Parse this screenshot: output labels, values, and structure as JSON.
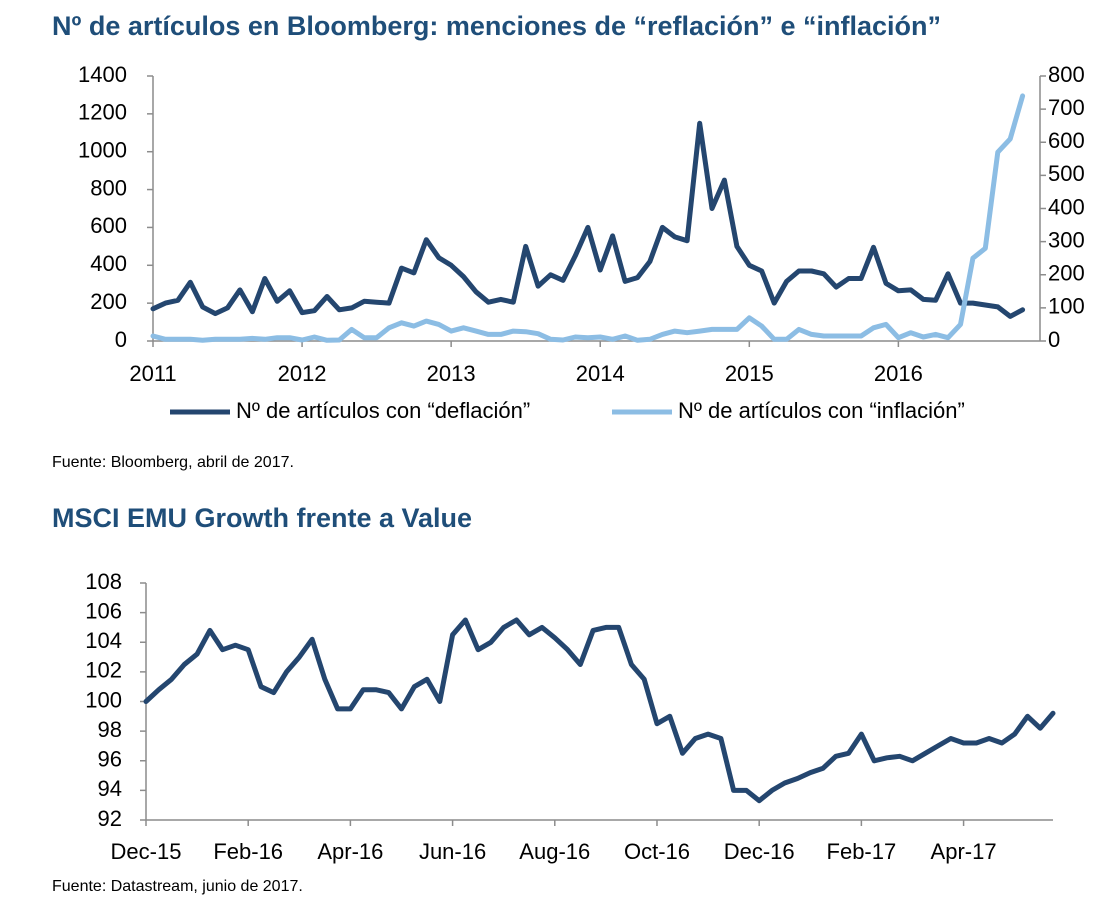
{
  "chart_data": [
    {
      "type": "line",
      "title": "Nº de artículos en Bloomberg: menciones de “reflación” e “inflación”",
      "x": [
        2011,
        2011.083,
        2011.167,
        2011.25,
        2011.333,
        2011.417,
        2011.5,
        2011.583,
        2011.667,
        2011.75,
        2011.833,
        2011.917,
        2012,
        2012.083,
        2012.167,
        2012.25,
        2012.333,
        2012.417,
        2012.5,
        2012.583,
        2012.667,
        2012.75,
        2012.833,
        2012.917,
        2013,
        2013.083,
        2013.167,
        2013.25,
        2013.333,
        2013.417,
        2013.5,
        2013.583,
        2013.667,
        2013.75,
        2013.833,
        2013.917,
        2014,
        2014.083,
        2014.167,
        2014.25,
        2014.333,
        2014.417,
        2014.5,
        2014.583,
        2014.667,
        2014.75,
        2014.833,
        2014.917,
        2015,
        2015.083,
        2015.167,
        2015.25,
        2015.333,
        2015.417,
        2015.5,
        2015.583,
        2015.667,
        2015.75,
        2015.833,
        2015.917,
        2016,
        2016.083,
        2016.167,
        2016.25,
        2016.333,
        2016.417,
        2016.5,
        2016.583,
        2016.667,
        2016.75,
        2016.833
      ],
      "xlim": [
        2011,
        2016.95
      ],
      "xticks": [
        2011,
        2012,
        2013,
        2014,
        2015,
        2016
      ],
      "ylim": [
        0,
        1400
      ],
      "yticks": [
        0,
        200,
        400,
        600,
        800,
        1000,
        1200,
        1400
      ],
      "y2lim": [
        0,
        800
      ],
      "y2ticks": [
        0,
        100,
        200,
        300,
        400,
        500,
        600,
        700,
        800
      ],
      "legend": "bottom",
      "series": [
        {
          "name": "Nº de artículos con “deflación”",
          "color": "#24466f",
          "values": [
            170,
            200,
            215,
            310,
            180,
            145,
            175,
            270,
            155,
            330,
            210,
            265,
            150,
            160,
            235,
            165,
            175,
            210,
            205,
            200,
            385,
            360,
            535,
            440,
            400,
            340,
            260,
            205,
            220,
            205,
            500,
            290,
            350,
            320,
            450,
            600,
            375,
            555,
            315,
            335,
            420,
            600,
            550,
            530,
            1150,
            700,
            850,
            500,
            400,
            370,
            200,
            315,
            370,
            370,
            355,
            285,
            330,
            330,
            495,
            305,
            265,
            270,
            220,
            215,
            355,
            200,
            200,
            190,
            180,
            130,
            165
          ]
        },
        {
          "name": "Nº de artículos con “inflación”",
          "color": "#8cbde4",
          "axis": "y2",
          "values": [
            15,
            5,
            5,
            5,
            2,
            5,
            5,
            5,
            8,
            5,
            10,
            10,
            3,
            12,
            2,
            3,
            35,
            10,
            10,
            40,
            55,
            45,
            60,
            50,
            30,
            40,
            30,
            20,
            20,
            30,
            28,
            22,
            5,
            3,
            12,
            10,
            12,
            5,
            15,
            2,
            5,
            20,
            30,
            25,
            30,
            35,
            35,
            35,
            70,
            45,
            5,
            5,
            35,
            20,
            15,
            15,
            15,
            15,
            40,
            50,
            10,
            25,
            12,
            20,
            10,
            50,
            250,
            280,
            570,
            610,
            740
          ]
        }
      ],
      "source": "Fuente: Bloomberg, abril de 2017."
    },
    {
      "type": "line",
      "title": "MSCI EMU Growth frente a Value",
      "categories": [
        "Dec-15",
        null,
        null,
        null,
        null,
        null,
        null,
        null,
        "Feb-16",
        null,
        null,
        null,
        null,
        null,
        null,
        null,
        "Apr-16",
        null,
        null,
        null,
        null,
        null,
        null,
        null,
        "Jun-16",
        null,
        null,
        null,
        null,
        null,
        null,
        null,
        "Aug-16",
        null,
        null,
        null,
        null,
        null,
        null,
        null,
        "Oct-16",
        null,
        null,
        null,
        null,
        null,
        null,
        null,
        "Dec-16",
        null,
        null,
        null,
        null,
        null,
        null,
        null,
        "Feb-17",
        null,
        null,
        null,
        null,
        null,
        null,
        null,
        "Apr-17",
        null,
        null,
        null,
        null,
        null,
        null,
        null
      ],
      "ylim": [
        92,
        108
      ],
      "yticks": [
        92,
        94,
        96,
        98,
        100,
        102,
        104,
        106,
        108
      ],
      "series": [
        {
          "color": "#24466f",
          "values": [
            100.0,
            100.8,
            101.5,
            102.5,
            103.2,
            104.8,
            103.5,
            103.8,
            103.5,
            101.0,
            100.6,
            102.0,
            103.0,
            104.2,
            101.5,
            99.5,
            99.5,
            100.8,
            100.8,
            100.6,
            99.5,
            101.0,
            101.5,
            100.0,
            104.5,
            105.5,
            103.5,
            104.0,
            105.0,
            105.5,
            104.5,
            105.0,
            104.3,
            103.5,
            102.5,
            104.8,
            105.0,
            105.0,
            102.5,
            101.5,
            98.5,
            99.0,
            96.5,
            97.5,
            97.8,
            97.5,
            94.0,
            94.0,
            93.3,
            94.0,
            94.5,
            94.8,
            95.2,
            95.5,
            96.3,
            96.5,
            97.8,
            96.0,
            96.2,
            96.3,
            96.0,
            96.5,
            97.0,
            97.5,
            97.2,
            97.2,
            97.5,
            97.2,
            97.8,
            99.0,
            98.2,
            99.2
          ]
        }
      ],
      "source": "Fuente: Datastream, junio de 2017."
    }
  ]
}
